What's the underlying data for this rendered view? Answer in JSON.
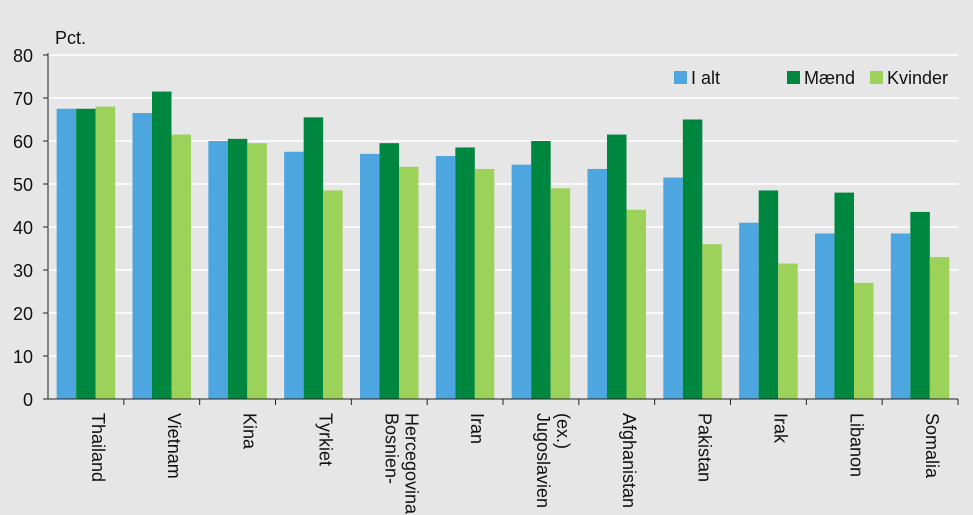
{
  "chart_data": {
    "type": "bar",
    "title": "",
    "ylabel": "Pct.",
    "xlabel": "",
    "ylim": [
      0,
      80
    ],
    "yticks": [
      0,
      10,
      20,
      30,
      40,
      50,
      60,
      70,
      80
    ],
    "grid": true,
    "legend_position": "top-right",
    "categories": [
      [
        "Thailand"
      ],
      [
        "Vietnam"
      ],
      [
        "Kina"
      ],
      [
        "Tyrkiet"
      ],
      [
        "Bosnien-",
        "Hercegovina"
      ],
      [
        "Iran"
      ],
      [
        "Jugoslavien",
        "(ex.)"
      ],
      [
        "Afghanistan"
      ],
      [
        "Pakistan"
      ],
      [
        "Irak"
      ],
      [
        "Libanon"
      ],
      [
        "Somalia"
      ]
    ],
    "series": [
      {
        "name": "I alt",
        "color": "#4da6e0",
        "values": [
          67.5,
          66.5,
          60,
          57.5,
          57,
          56.5,
          54.5,
          53.5,
          51.5,
          41,
          38.5,
          38.5
        ]
      },
      {
        "name": "Mænd",
        "color": "#00873f",
        "values": [
          67.5,
          71.5,
          60.5,
          65.5,
          59.5,
          58.5,
          60,
          61.5,
          65,
          48.5,
          48,
          43.5
        ]
      },
      {
        "name": "Kvinder",
        "color": "#9dd25a",
        "values": [
          68,
          61.5,
          59.5,
          48.5,
          54,
          53.5,
          49,
          44,
          36,
          31.5,
          27,
          33
        ]
      }
    ]
  }
}
